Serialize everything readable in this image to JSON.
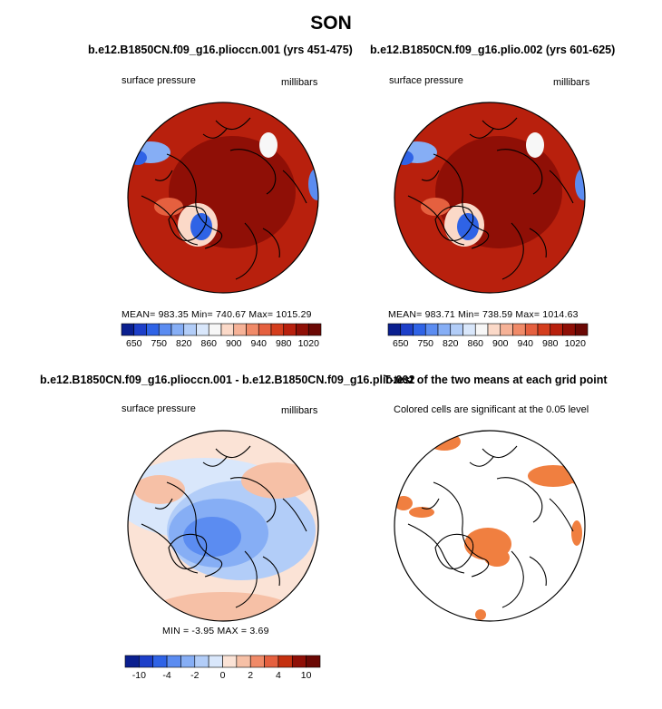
{
  "page": {
    "title": "SON"
  },
  "panels": [
    {
      "id": "p1",
      "title": "b.e12.B1850CN.f09_g16.plioccn.001 (yrs 451-475)",
      "left_label": "surface pressure",
      "right_label": "millibars",
      "stats": "MEAN= 983.35   Min= 740.67   Max= 1015.29"
    },
    {
      "id": "p2",
      "title": "b.e12.B1850CN.f09_g16.plio.002 (yrs 601-625)",
      "left_label": "surface pressure",
      "right_label": "millibars",
      "stats": "MEAN= 983.71   Min= 738.59   Max= 1014.63"
    },
    {
      "id": "p3",
      "title": "b.e12.B1850CN.f09_g16.plioccn.001 - b.e12.B1850CN.f09_g16.plio.002",
      "left_label": "surface pressure",
      "right_label": "millibars",
      "stats": "MIN =   -3.95  MAX =    3.69"
    },
    {
      "id": "p4",
      "title": "T-test of the two means at each grid point",
      "left_label": "Colored cells are significant at the 0.05 level",
      "right_label": "",
      "stats": ""
    }
  ],
  "chart_data": [
    {
      "type": "heatmap",
      "title": "b.e12.B1850CN.f09_g16.plioccn.001 (yrs 451-475)",
      "variable": "surface pressure",
      "units": "millibars",
      "projection": "north polar stereographic",
      "colorbar": {
        "levels": [
          650,
          700,
          750,
          800,
          820,
          840,
          860,
          880,
          900,
          920,
          940,
          960,
          980,
          1000,
          1020
        ],
        "tick_labels": [
          "650",
          "750",
          "820",
          "860",
          "900",
          "940",
          "980",
          "1020"
        ],
        "colors": [
          "#0a1f8f",
          "#1d3fc9",
          "#2f63e6",
          "#5b8cf1",
          "#86aef5",
          "#b2cdf8",
          "#d9e7fb",
          "#f7f7f7",
          "#fbd9c8",
          "#f6b297",
          "#f08a68",
          "#e5603f",
          "#d43d1d",
          "#b8200d",
          "#8f0f06",
          "#6b0804"
        ]
      },
      "stats": {
        "mean": 983.35,
        "min": 740.67,
        "max": 1015.29
      }
    },
    {
      "type": "heatmap",
      "title": "b.e12.B1850CN.f09_g16.plio.002 (yrs 601-625)",
      "variable": "surface pressure",
      "units": "millibars",
      "projection": "north polar stereographic",
      "colorbar": {
        "levels": [
          650,
          700,
          750,
          800,
          820,
          840,
          860,
          880,
          900,
          920,
          940,
          960,
          980,
          1000,
          1020
        ],
        "tick_labels": [
          "650",
          "750",
          "820",
          "860",
          "900",
          "940",
          "980",
          "1020"
        ],
        "colors": [
          "#0a1f8f",
          "#1d3fc9",
          "#2f63e6",
          "#5b8cf1",
          "#86aef5",
          "#b2cdf8",
          "#d9e7fb",
          "#f7f7f7",
          "#fbd9c8",
          "#f6b297",
          "#f08a68",
          "#e5603f",
          "#d43d1d",
          "#b8200d",
          "#8f0f06",
          "#6b0804"
        ]
      },
      "stats": {
        "mean": 983.71,
        "min": 738.59,
        "max": 1014.63
      }
    },
    {
      "type": "heatmap",
      "title": "b.e12.B1850CN.f09_g16.plioccn.001 - b.e12.B1850CN.f09_g16.plio.002",
      "variable": "surface pressure",
      "units": "millibars",
      "projection": "north polar stereographic",
      "colorbar": {
        "levels": [
          -10,
          -8,
          -4,
          -3,
          -2,
          -1,
          0,
          1,
          2,
          3,
          4,
          8,
          10
        ],
        "tick_labels": [
          "-10",
          "-4",
          "-2",
          "0",
          "2",
          "4",
          "10"
        ],
        "colors": [
          "#0a1f8f",
          "#1d3fc9",
          "#2f63e6",
          "#5b8cf1",
          "#86aef5",
          "#b2cdf8",
          "#d9e7fb",
          "#fbe3d6",
          "#f6c0a6",
          "#f08a68",
          "#e5603f",
          "#c4300f",
          "#8f0f06",
          "#6b0804"
        ]
      },
      "stats": {
        "min": -3.95,
        "max": 3.69
      }
    },
    {
      "type": "heatmap",
      "title": "T-test of the two means at each grid point",
      "description_label": "Colored cells are significant at the 0.05 level",
      "projection": "north polar stereographic",
      "significance_color": "#f07f40"
    }
  ]
}
